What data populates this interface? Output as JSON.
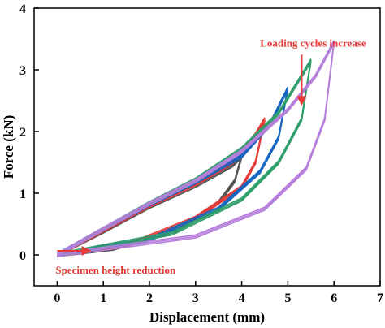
{
  "chart_data": {
    "type": "line",
    "title": "",
    "xlabel": "Displacement (mm)",
    "ylabel": "Force (kN)",
    "xlim": [
      -0.5,
      7
    ],
    "ylim": [
      -0.5,
      4
    ],
    "xticks": [
      "0",
      "1",
      "2",
      "3",
      "4",
      "5",
      "6",
      "7"
    ],
    "yticks": [
      "0",
      "1",
      "2",
      "3",
      "4"
    ],
    "grid": false,
    "series": [
      {
        "color": "#555555",
        "loading": [
          [
            0,
            0
          ],
          [
            1,
            0.38
          ],
          [
            2,
            0.78
          ],
          [
            3,
            1.12
          ],
          [
            3.8,
            1.45
          ],
          [
            4,
            1.6
          ]
        ],
        "unloading": [
          [
            4,
            1.6
          ],
          [
            3.85,
            1.2
          ],
          [
            3.5,
            0.85
          ],
          [
            2.6,
            0.4
          ],
          [
            1.2,
            0.1
          ],
          [
            0,
            0
          ]
        ]
      },
      {
        "color": "#e53935",
        "loading": [
          [
            0,
            0
          ],
          [
            1,
            0.4
          ],
          [
            2,
            0.8
          ],
          [
            3,
            1.15
          ],
          [
            3.8,
            1.5
          ],
          [
            4.3,
            1.95
          ],
          [
            4.5,
            2.2
          ]
        ],
        "unloading": [
          [
            4.5,
            2.2
          ],
          [
            4.3,
            1.5
          ],
          [
            4,
            1.1
          ],
          [
            3,
            0.6
          ],
          [
            1.5,
            0.15
          ],
          [
            0,
            0
          ]
        ]
      },
      {
        "color": "#1565c0",
        "loading": [
          [
            0,
            0
          ],
          [
            1,
            0.42
          ],
          [
            2,
            0.82
          ],
          [
            3,
            1.18
          ],
          [
            4,
            1.6
          ],
          [
            4.6,
            2.1
          ],
          [
            5,
            2.7
          ]
        ],
        "unloading": [
          [
            5,
            2.7
          ],
          [
            4.8,
            1.9
          ],
          [
            4.4,
            1.35
          ],
          [
            3.5,
            0.75
          ],
          [
            2,
            0.25
          ],
          [
            0,
            0
          ]
        ]
      },
      {
        "color": "#2e9e6b",
        "loading": [
          [
            0,
            0
          ],
          [
            1,
            0.42
          ],
          [
            2,
            0.84
          ],
          [
            3,
            1.22
          ],
          [
            4,
            1.72
          ],
          [
            4.8,
            2.3
          ],
          [
            5.5,
            3.15
          ]
        ],
        "unloading": [
          [
            5.5,
            3.15
          ],
          [
            5.3,
            2.2
          ],
          [
            4.8,
            1.5
          ],
          [
            4,
            0.9
          ],
          [
            2.5,
            0.35
          ],
          [
            0,
            0
          ]
        ]
      },
      {
        "color": "#b57fdb",
        "loading": [
          [
            0,
            0
          ],
          [
            1,
            0.42
          ],
          [
            2,
            0.83
          ],
          [
            3,
            1.2
          ],
          [
            4,
            1.68
          ],
          [
            5,
            2.35
          ],
          [
            5.6,
            2.9
          ],
          [
            6,
            3.45
          ]
        ],
        "unloading": [
          [
            6,
            3.45
          ],
          [
            5.8,
            2.2
          ],
          [
            5.4,
            1.4
          ],
          [
            4.5,
            0.75
          ],
          [
            3,
            0.3
          ],
          [
            0,
            0
          ]
        ]
      }
    ],
    "annotations": [
      {
        "text": "Loading cycles increase",
        "x": 5.3,
        "y": 3.35,
        "arrow_to": [
          5.3,
          2.45
        ]
      },
      {
        "text": "Specimen height reduction",
        "x": 0,
        "y": -0.25,
        "arrow_from": [
          0,
          0
        ],
        "arrow_to": [
          0.7,
          0
        ]
      }
    ]
  }
}
